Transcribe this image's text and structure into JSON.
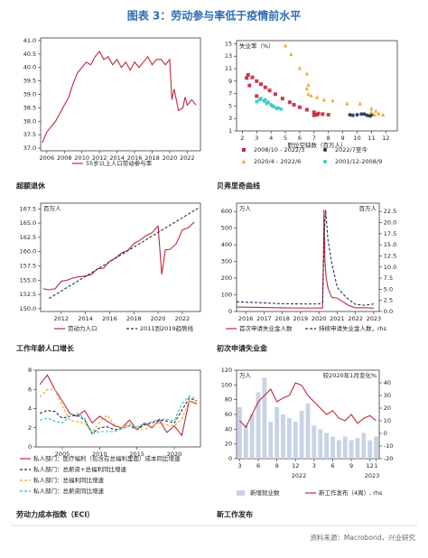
{
  "title": "图表 3：劳动参与率低于疫情前水平",
  "source": "资料来源：Macrobond，兴业研究",
  "chart_data": [
    {
      "type": "line",
      "caption": "超额退休",
      "xlim": [
        2005.3,
        2023.5
      ],
      "xticks": [
        2006,
        2008,
        2010,
        2012,
        2014,
        2016,
        2018,
        2020,
        2022
      ],
      "ylim": [
        36.9,
        41.1
      ],
      "yticks": [
        {
          "value": 37,
          "label": "37.0"
        },
        37.5,
        {
          "value": 38,
          "label": "38.0"
        },
        38.5,
        {
          "value": 39,
          "label": "39.0"
        },
        39.5,
        {
          "value": 40,
          "label": "40.0"
        },
        40.5,
        {
          "value": 41,
          "label": "41.0"
        }
      ],
      "series": [
        {
          "name": "55岁以上人口劳动参与率",
          "color": "#c0283a",
          "x": [
            2005.5,
            2006,
            2006.5,
            2007,
            2007.5,
            2008,
            2008.5,
            2009,
            2009.5,
            2010,
            2010.5,
            2011,
            2011.5,
            2012,
            2012.5,
            2013,
            2013.5,
            2014,
            2014.5,
            2015,
            2015.5,
            2016,
            2016.5,
            2017,
            2017.5,
            2018,
            2018.5,
            2019,
            2019.5,
            2020,
            2020.25,
            2020.5,
            2021,
            2021.5,
            2021.75,
            2022,
            2022.5,
            2023
          ],
          "values": [
            37.2,
            37.6,
            37.8,
            38.0,
            38.3,
            38.6,
            38.9,
            39.4,
            39.8,
            40.0,
            40.2,
            40.1,
            40.4,
            40.6,
            40.3,
            40.4,
            40.1,
            40.3,
            40.0,
            40.2,
            39.9,
            40.2,
            40.0,
            40.2,
            40.4,
            40.1,
            40.3,
            40.3,
            40.1,
            40.3,
            38.8,
            39.2,
            38.4,
            38.5,
            38.9,
            38.6,
            38.8,
            38.6
          ]
        }
      ]
    },
    {
      "type": "scatter",
      "caption": "贝弗里奇曲线",
      "ylabel": "失业率（%）",
      "xlabel": "职位空缺数（百万人）",
      "xlim": [
        1.6,
        12.8
      ],
      "xticks": [
        2,
        3,
        4,
        5,
        6,
        7,
        8,
        9,
        10,
        11,
        12
      ],
      "ylim": [
        1,
        15.5
      ],
      "yticks": [
        1,
        3,
        5,
        7,
        9,
        11,
        13,
        15
      ],
      "series": [
        {
          "name": "2008/10 - 2022/3",
          "color": "#c0283a",
          "marker": "square",
          "x": [
            3.0,
            2.5,
            2.3,
            2.4,
            2.7,
            3.0,
            3.3,
            3.6,
            3.9,
            4.3,
            4.8,
            5.3,
            5.6,
            6.0,
            6.5,
            7.0,
            7.3,
            7.2,
            7.0,
            7.6,
            8.0
          ],
          "values": [
            6.6,
            8.3,
            9.5,
            10.0,
            9.6,
            9.0,
            8.5,
            8.0,
            7.5,
            6.9,
            6.2,
            5.6,
            5.2,
            4.8,
            4.4,
            4.0,
            3.8,
            3.6,
            3.5,
            3.7,
            3.6
          ]
        },
        {
          "name": "2022/7至今",
          "color": "#1f2f55",
          "marker": "circle",
          "x": [
            10.7,
            10.3,
            10.0,
            10.5,
            9.7,
            9.5,
            10.9,
            11.0
          ],
          "values": [
            3.5,
            3.7,
            3.6,
            3.7,
            3.5,
            3.6,
            3.4,
            3.6
          ]
        },
        {
          "name": "2020/4 - 2022/6",
          "color": "#f0a020",
          "marker": "triangle",
          "x": [
            5.0,
            5.4,
            6.0,
            6.5,
            6.6,
            6.5,
            6.6,
            6.8,
            7.2,
            7.7,
            8.3,
            9.3,
            10.2,
            11.0,
            11.3,
            11.0,
            11.5,
            11.8,
            11.2
          ],
          "values": [
            14.7,
            13.3,
            11.1,
            10.2,
            8.4,
            7.8,
            6.9,
            6.7,
            6.4,
            6.0,
            5.9,
            5.4,
            5.4,
            4.6,
            4.2,
            4.0,
            3.8,
            3.6,
            3.6
          ]
        },
        {
          "name": "2001/12-2008/9",
          "color": "#3cc8c8",
          "marker": "circle",
          "x": [
            3.0,
            3.2,
            3.3,
            3.5,
            3.7,
            4.0,
            4.2,
            4.5,
            4.7,
            4.4,
            4.1,
            3.8,
            3.6
          ],
          "values": [
            5.7,
            6.0,
            6.2,
            5.8,
            5.4,
            5.2,
            4.9,
            4.7,
            4.5,
            4.6,
            5.0,
            5.6,
            6.0
          ]
        }
      ]
    },
    {
      "type": "line",
      "caption": "工作年龄人口增长",
      "ylabel": "百万人",
      "xlim": [
        2010.3,
        2023.5
      ],
      "xticks": [
        2012,
        2014,
        2016,
        2018,
        2020,
        2022
      ],
      "ylim": [
        149.5,
        168.5
      ],
      "yticks": [
        {
          "value": 150,
          "label": "150.0"
        },
        152.5,
        {
          "value": 155,
          "label": "155.0"
        },
        157.5,
        {
          "value": 160,
          "label": "160.0"
        },
        162.5,
        {
          "value": 165,
          "label": "165.0"
        },
        167.5
      ],
      "series": [
        {
          "name": "劳动力人口",
          "color": "#c0283a",
          "x": [
            2010.5,
            2011,
            2011.5,
            2012,
            2012.5,
            2013,
            2013.5,
            2014,
            2014.5,
            2015,
            2015.5,
            2016,
            2016.5,
            2017,
            2017.5,
            2018,
            2018.5,
            2019,
            2019.5,
            2020,
            2020.3,
            2020.6,
            2021,
            2021.5,
            2022,
            2022.5,
            2023
          ],
          "values": [
            153.5,
            153.3,
            153.5,
            154.8,
            155.0,
            155.4,
            155.6,
            155.7,
            156.0,
            157.0,
            157.1,
            158.3,
            158.9,
            159.8,
            160.2,
            161.4,
            162.0,
            162.8,
            163.3,
            164.5,
            156.0,
            160.3,
            160.4,
            161.4,
            163.8,
            164.2,
            165.2
          ]
        },
        {
          "name": "2011到2019趋势线",
          "color": "#1f2f55",
          "dash": true,
          "x": [
            2011,
            2023.3
          ],
          "values": [
            151.8,
            167.6
          ]
        }
      ]
    },
    {
      "type": "line",
      "caption": "初次申请失业金",
      "ylabel": "万人",
      "y2label": "百万人",
      "xlim": [
        2015.5,
        2023.3
      ],
      "xticks": [
        2016,
        2017,
        2018,
        2019,
        2020,
        2021,
        2022,
        2023
      ],
      "ylim": [
        0,
        650
      ],
      "yticks": [
        0,
        100,
        200,
        300,
        400,
        500,
        600
      ],
      "y2lim": [
        0,
        24.375
      ],
      "y2ticks": [
        {
          "value": 0,
          "label": "0.0"
        },
        2.5,
        {
          "value": 5,
          "label": "5.0"
        },
        7.5,
        {
          "value": 10,
          "label": "10.0"
        },
        12.5,
        {
          "value": 15,
          "label": "15.0"
        },
        17.5,
        {
          "value": 20,
          "label": "20.0"
        },
        22.5
      ],
      "series": [
        {
          "name": "首次申请失业金人数",
          "color": "#c0283a",
          "x": [
            2015.5,
            2016,
            2017,
            2018,
            2019,
            2020,
            2020.2,
            2020.25,
            2020.28,
            2020.33,
            2020.4,
            2020.5,
            2020.7,
            2021,
            2021.3,
            2021.6,
            2022,
            2022.5,
            2023
          ],
          "values": [
            27,
            26,
            24,
            22,
            21,
            21,
            20,
            330,
            610,
            300,
            200,
            140,
            85,
            80,
            60,
            38,
            22,
            23,
            20
          ]
        },
        {
          "name": "持续申请失业金人数，rhs",
          "color": "#1f2f55",
          "dash": true,
          "axis": "y2",
          "x": [
            2015.5,
            2016,
            2017,
            2018,
            2019,
            2020,
            2020.2,
            2020.3,
            2020.37,
            2020.5,
            2020.7,
            2021,
            2021.3,
            2021.6,
            2022,
            2022.5,
            2023
          ],
          "values": [
            2.2,
            2.1,
            1.95,
            1.75,
            1.7,
            1.7,
            2.0,
            18,
            22.8,
            16,
            11,
            5.5,
            4.0,
            2.8,
            1.6,
            1.4,
            1.7
          ]
        }
      ]
    },
    {
      "type": "line",
      "caption": "劳动力成本指数（ECI）",
      "xlim": [
        2001.5,
        2023.5
      ],
      "xticks": [
        2005,
        2010,
        2015,
        2020
      ],
      "ylim": [
        0,
        8
      ],
      "yticks": [
        0,
        2,
        4,
        6,
        8
      ],
      "x": [
        2002,
        2003,
        2004,
        2005,
        2006,
        2007,
        2008,
        2009,
        2010,
        2011,
        2012,
        2013,
        2014,
        2015,
        2016,
        2017,
        2018,
        2019,
        2020,
        2021,
        2022,
        2023
      ],
      "series": [
        {
          "name": "私人部门：医疗福利（包含在总福利里面）成本同比增速",
          "color": "#c0283a",
          "values": [
            6.5,
            7.5,
            6.0,
            4.8,
            3.5,
            3.2,
            3.8,
            2.5,
            3.2,
            2.7,
            2.2,
            2.0,
            2.8,
            1.8,
            2.5,
            2.0,
            2.8,
            1.5,
            2.2,
            1.2,
            4.8,
            4.5
          ]
        },
        {
          "name": "私人部门：总薪资+总福利同比增速",
          "color": "#1f2f55",
          "dash": true,
          "values": [
            3.5,
            3.8,
            3.7,
            3.0,
            3.2,
            3.3,
            2.8,
            1.4,
            2.0,
            2.1,
            1.8,
            1.9,
            2.2,
            1.8,
            2.3,
            2.5,
            2.8,
            2.7,
            2.5,
            3.8,
            5.1,
            4.8
          ]
        },
        {
          "name": "私人部门：总福利同比增速",
          "color": "#f0a020",
          "dash": true,
          "values": [
            5.2,
            6.0,
            6.0,
            4.3,
            2.8,
            2.6,
            2.5,
            1.5,
            2.6,
            3.3,
            2.3,
            2.0,
            2.4,
            1.8,
            1.8,
            2.2,
            2.5,
            2.3,
            2.2,
            2.9,
            4.8,
            4.6
          ]
        },
        {
          "name": "私人部门：总薪资同比增速",
          "color": "#3cb8b8",
          "dash": true,
          "values": [
            2.8,
            3.0,
            2.7,
            2.5,
            3.2,
            3.5,
            3.0,
            1.4,
            1.6,
            1.6,
            1.6,
            1.9,
            2.2,
            2.1,
            2.4,
            2.6,
            2.9,
            2.9,
            2.7,
            4.5,
            5.3,
            5.0
          ]
        }
      ]
    },
    {
      "type": "bar",
      "caption": "新工作发布",
      "ylabel": "万人",
      "y2label": "较2020年1月变化%",
      "categories": [
        "3",
        null,
        null,
        "6",
        null,
        null,
        "9",
        null,
        null,
        "12",
        null,
        null,
        "3",
        null,
        null,
        "6",
        null,
        null,
        "9",
        null,
        null,
        "12",
        "1"
      ],
      "x_group_labels": [
        "2022",
        "2023"
      ],
      "ylim": [
        0,
        120
      ],
      "yticks": [
        0,
        20,
        40,
        60,
        80,
        100,
        120
      ],
      "y2lim": [
        -20,
        50
      ],
      "y2ticks": [
        -20,
        -10,
        0,
        10,
        20,
        30,
        40
      ],
      "series": [
        {
          "name": "新增就业数",
          "color": "#c9d3e6",
          "type": "bar",
          "values": [
            70,
            45,
            60,
            90,
            110,
            50,
            70,
            60,
            55,
            50,
            65,
            75,
            45,
            40,
            35,
            30,
            25,
            30,
            25,
            28,
            35,
            25,
            30
          ]
        },
        {
          "name": "新工作发布（4周）, rhs",
          "color": "#c0283a",
          "type": "line",
          "axis": "y2",
          "values": [
            10,
            5,
            15,
            25,
            30,
            35,
            25,
            28,
            30,
            40,
            38,
            30,
            25,
            20,
            15,
            18,
            12,
            10,
            15,
            8,
            12,
            14,
            10
          ]
        }
      ]
    }
  ]
}
